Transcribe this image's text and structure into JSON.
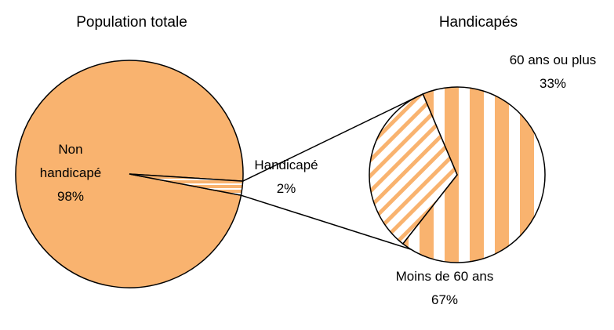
{
  "chart_data": [
    {
      "type": "pie",
      "title": "Population totale",
      "categories": [
        "Non handicapé",
        "Handicapé"
      ],
      "values": [
        98,
        2
      ],
      "value_labels": [
        "98%",
        "2%"
      ],
      "colors": [
        "#f9b36f",
        "#f9b36f"
      ]
    },
    {
      "type": "pie",
      "title": "Handicapés",
      "categories": [
        "Moins de 60 ans",
        "60 ans ou plus"
      ],
      "values": [
        67,
        33
      ],
      "value_labels": [
        "67%",
        "33%"
      ],
      "colors": [
        "#f9b36f",
        "#f9b36f"
      ]
    }
  ]
}
